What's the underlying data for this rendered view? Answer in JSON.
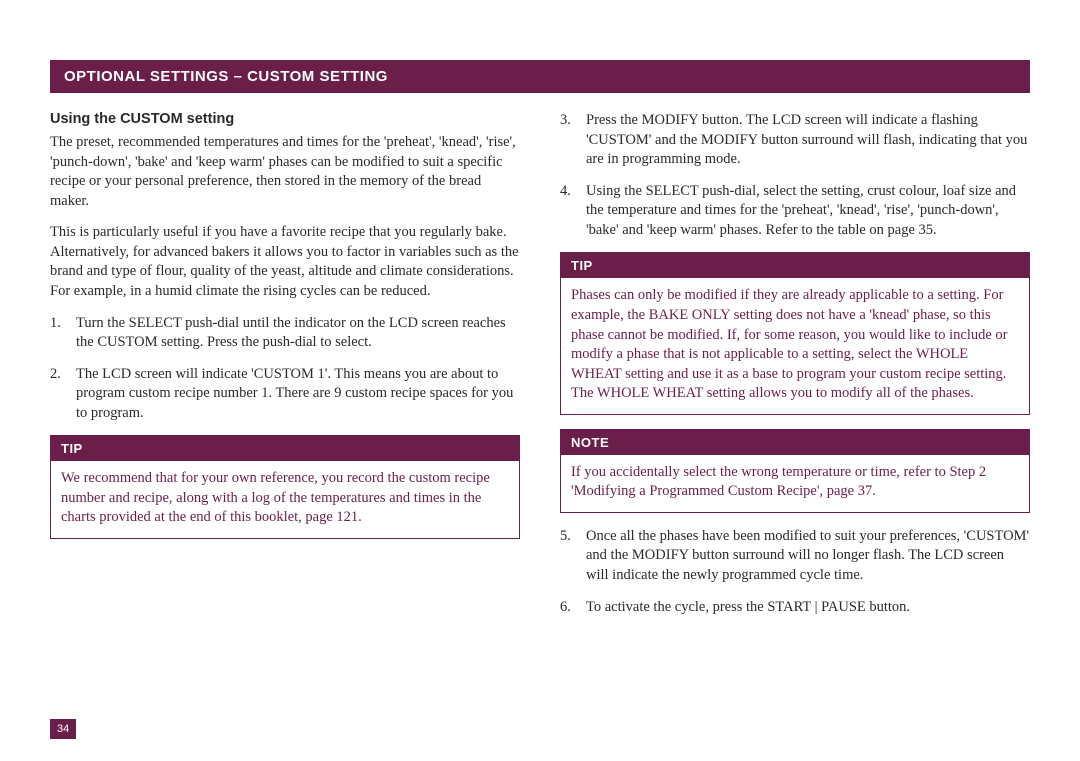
{
  "colors": {
    "brand": "#6b1e4a",
    "text": "#2a2a2a",
    "bg": "#ffffff"
  },
  "header": "OPTIONAL SETTINGS – CUSTOM SETTING",
  "left": {
    "subtitle": "Using the CUSTOM setting",
    "p1": "The preset, recommended temperatures and times for the 'preheat', 'knead', 'rise', 'punch-down', 'bake' and 'keep warm' phases can be modified to suit a specific recipe or your personal preference, then stored in the memory of the bread maker.",
    "p2": "This is particularly useful if you have a favorite recipe that you regularly bake. Alternatively, for advanced bakers it allows you to factor in variables such as the brand and type of flour, quality of the yeast, altitude and climate considerations. For example, in a humid climate the rising cycles can be reduced.",
    "li1_num": "1.",
    "li1": "Turn the SELECT push-dial until the indicator on the LCD screen reaches the CUSTOM setting. Press the push-dial to select.",
    "li2_num": "2.",
    "li2": "The LCD screen will indicate 'CUSTOM 1'. This means you are about to program custom recipe number 1. There are 9 custom recipe spaces for you to program.",
    "tip_label": "TIP",
    "tip_body": "We recommend that for your own reference, you record the custom recipe number and recipe, along with a log of the temperatures and times in the charts provided at the end of this booklet, page 121."
  },
  "right": {
    "li3_num": "3.",
    "li3": "Press the MODIFY button. The LCD screen will indicate a flashing 'CUSTOM' and the MODIFY button surround will flash, indicating that you are in programming mode.",
    "li4_num": "4.",
    "li4": "Using the SELECT push-dial, select the setting, crust colour, loaf size and the temperature and times for the 'preheat', 'knead', 'rise', 'punch-down', 'bake' and 'keep warm' phases. Refer to the table on page 35.",
    "tip_label": "TIP",
    "tip_body": "Phases can only be modified if they are already applicable to a setting. For example, the BAKE ONLY setting does not have a 'knead' phase, so this phase cannot be modified. If, for some reason, you would like to include or modify a phase that is not applicable to a setting, select the WHOLE WHEAT setting and use it as a base to program your custom recipe setting. The WHOLE WHEAT setting allows you to modify all of the phases.",
    "note_label": "NOTE",
    "note_body": "If you accidentally select the wrong temperature or time, refer to Step 2 'Modifying a Programmed Custom Recipe', page 37.",
    "li5_num": "5.",
    "li5": "Once all the phases have been modified to suit your preferences, 'CUSTOM' and the MODIFY button surround will no longer flash. The LCD screen will indicate the newly programmed cycle time.",
    "li6_num": "6.",
    "li6": "To activate the cycle, press the START | PAUSE button."
  },
  "page_number": "34"
}
